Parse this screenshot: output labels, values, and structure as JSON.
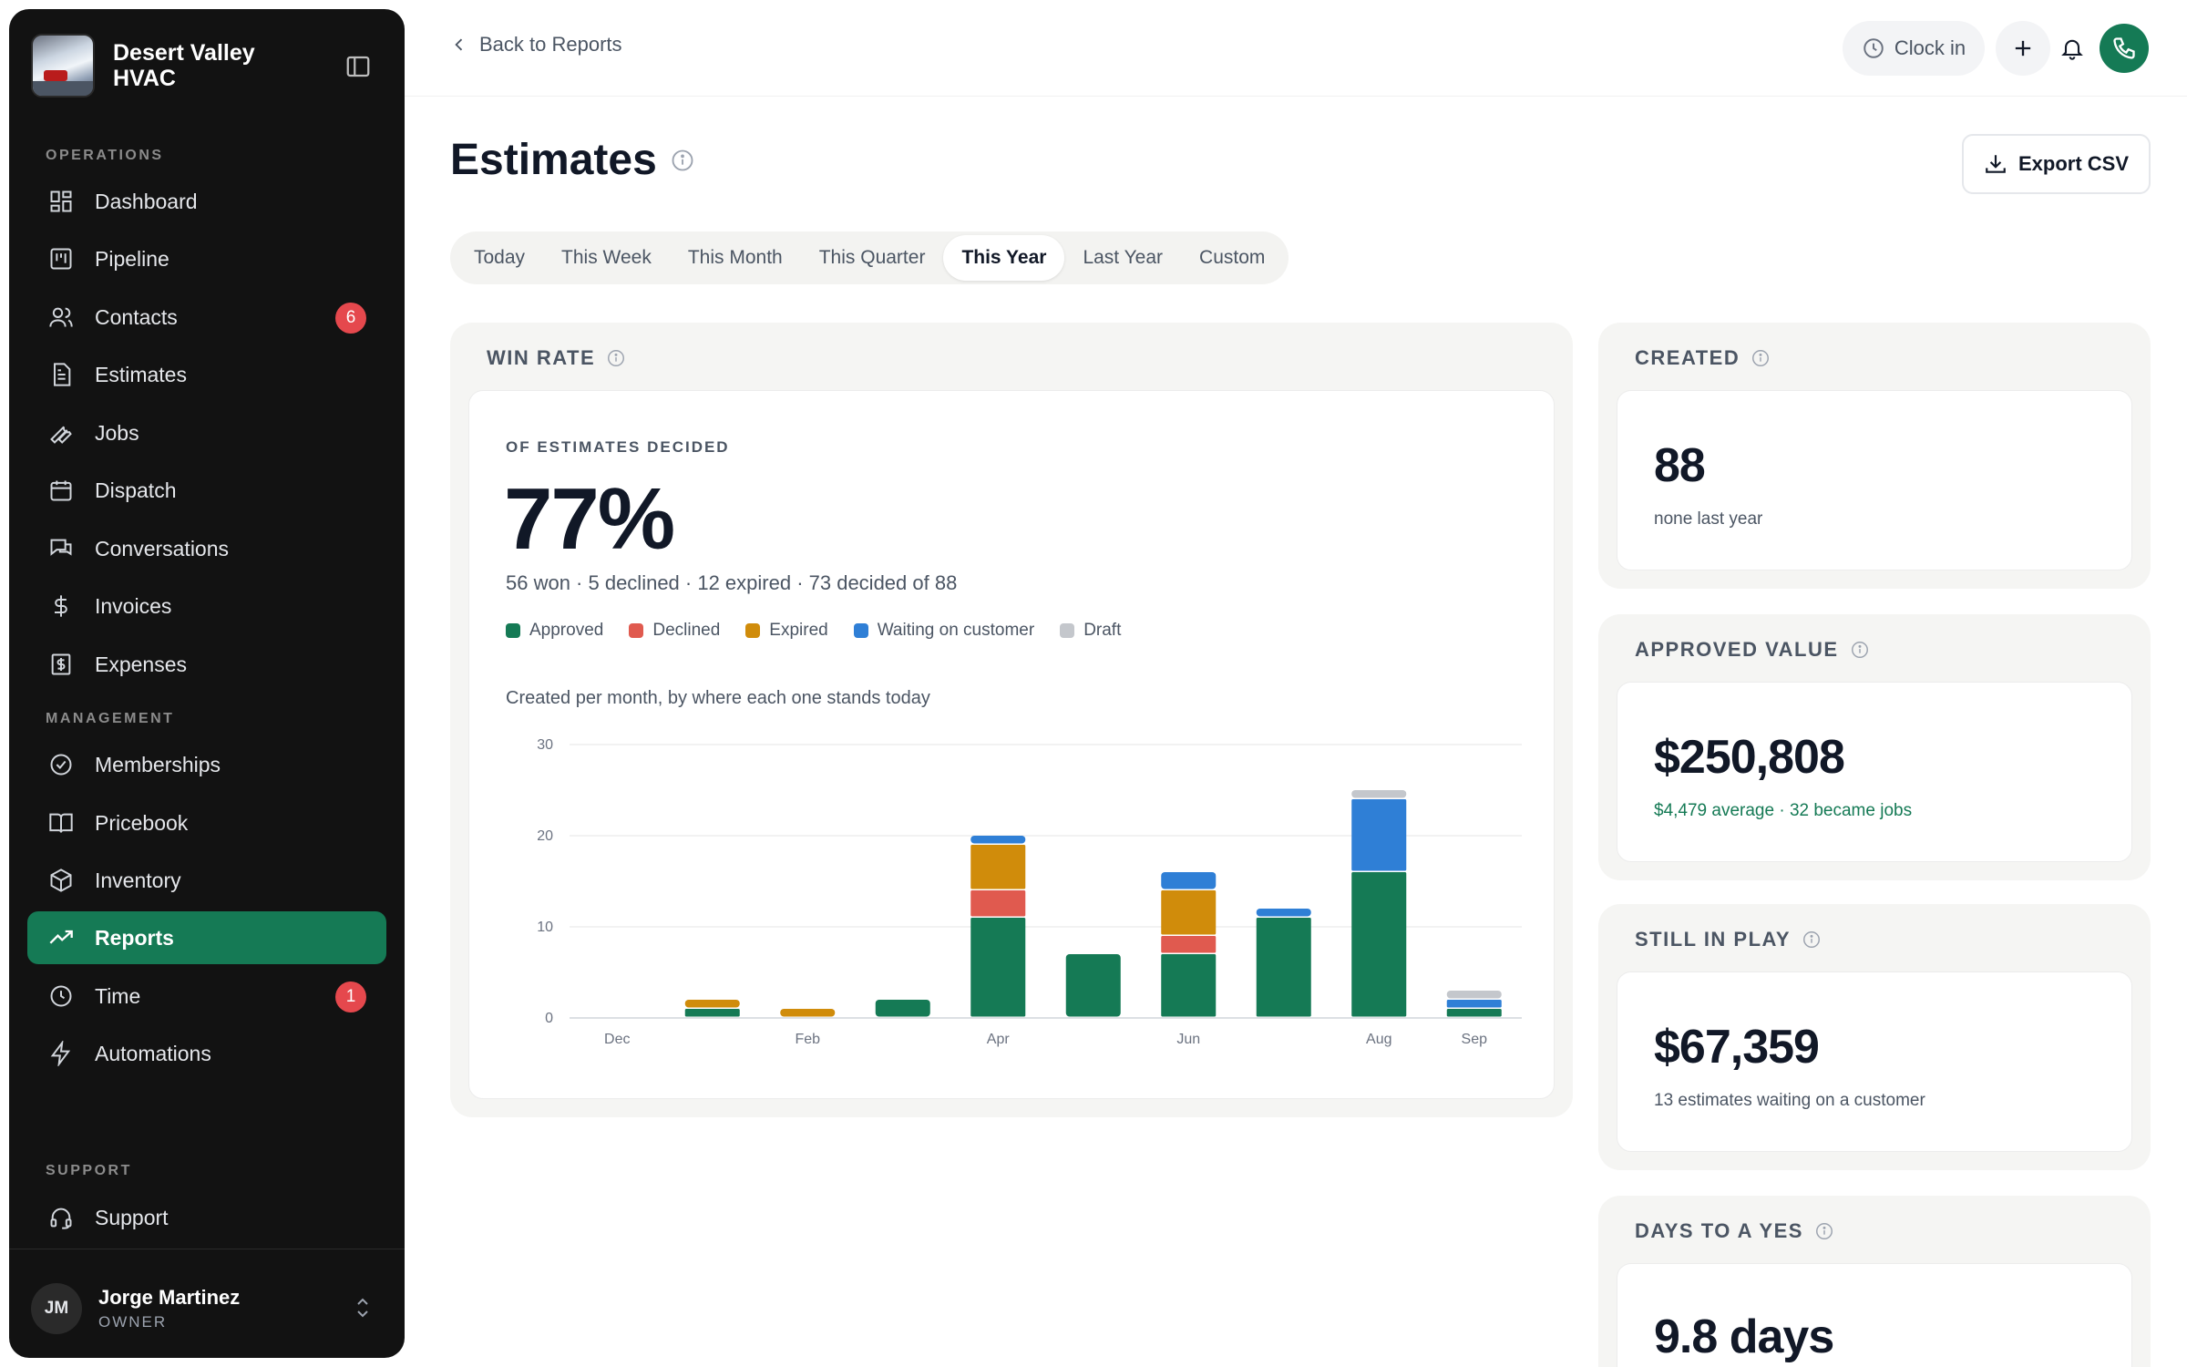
{
  "brand": {
    "name": "Desert Valley HVAC"
  },
  "sidebar": {
    "sections": {
      "operations": "OPERATIONS",
      "management": "MANAGEMENT",
      "support": "SUPPORT"
    },
    "items": [
      {
        "label": "Dashboard",
        "icon": "dashboard-icon"
      },
      {
        "label": "Pipeline",
        "icon": "pipeline-icon"
      },
      {
        "label": "Contacts",
        "icon": "contacts-icon",
        "badge": "6"
      },
      {
        "label": "Estimates",
        "icon": "document-icon"
      },
      {
        "label": "Jobs",
        "icon": "wrench-icon"
      },
      {
        "label": "Dispatch",
        "icon": "calendar-icon"
      },
      {
        "label": "Conversations",
        "icon": "chat-icon"
      },
      {
        "label": "Invoices",
        "icon": "dollar-icon"
      },
      {
        "label": "Expenses",
        "icon": "receipt-icon"
      },
      {
        "label": "Memberships",
        "icon": "badge-check-icon"
      },
      {
        "label": "Pricebook",
        "icon": "book-icon"
      },
      {
        "label": "Inventory",
        "icon": "box-icon"
      },
      {
        "label": "Reports",
        "icon": "trend-icon",
        "active": true
      },
      {
        "label": "Time",
        "icon": "clock-icon",
        "badge": "1"
      },
      {
        "label": "Automations",
        "icon": "bolt-icon"
      },
      {
        "label": "Support",
        "icon": "headset-icon"
      }
    ],
    "user": {
      "initials": "JM",
      "name": "Jorge Martinez",
      "role": "OWNER"
    }
  },
  "topbar": {
    "back_label": "Back to Reports",
    "clock_label": "Clock in"
  },
  "page": {
    "title": "Estimates",
    "export_label": "Export CSV",
    "tabs": [
      "Today",
      "This Week",
      "This Month",
      "This Quarter",
      "This Year",
      "Last Year",
      "Custom"
    ],
    "selected_tab": "This Year"
  },
  "win_rate": {
    "label": "WIN RATE",
    "sub_label": "OF ESTIMATES DECIDED",
    "value": "77%",
    "summary": "56 won · 5 declined · 12 expired · 73 decided of 88",
    "chart_caption": "Created per month, by where each one stands today"
  },
  "colors": {
    "accent": "#157a55",
    "approved": "#157a55",
    "declined": "#e05a4f",
    "expired": "#d08c0b",
    "waiting": "#2f7fd6",
    "draft": "#c4c7cc"
  },
  "chart_data": {
    "type": "bar",
    "stacked": true,
    "categories": [
      "Dec",
      "Jan",
      "Feb",
      "Mar",
      "Apr",
      "May",
      "Jun",
      "Jul",
      "Aug",
      "Sep"
    ],
    "tick_labels": [
      "Dec",
      "",
      "Feb",
      "",
      "Apr",
      "",
      "Jun",
      "",
      "Aug",
      "Sep"
    ],
    "series": [
      {
        "name": "Approved",
        "values": [
          0,
          1,
          0,
          2,
          11,
          7,
          7,
          11,
          16,
          1
        ]
      },
      {
        "name": "Declined",
        "values": [
          0,
          0,
          0,
          0,
          3,
          0,
          2,
          0,
          0,
          0
        ]
      },
      {
        "name": "Expired",
        "values": [
          0,
          1,
          1,
          0,
          5,
          0,
          5,
          0,
          0,
          0
        ]
      },
      {
        "name": "Waiting on customer",
        "values": [
          0,
          0,
          0,
          0,
          1,
          0,
          2,
          1,
          8,
          1
        ]
      },
      {
        "name": "Draft",
        "values": [
          0,
          0,
          0,
          0,
          0,
          0,
          0,
          0,
          1,
          1
        ]
      }
    ],
    "yticks": [
      0,
      10,
      20,
      30
    ],
    "ylim": [
      0,
      30
    ],
    "grid": true,
    "legend": "top-left"
  },
  "kpis": [
    {
      "label": "CREATED",
      "value": "88",
      "sub": "none last year",
      "green": false
    },
    {
      "label": "APPROVED VALUE",
      "value": "$250,808",
      "sub": "$4,479 average · 32 became jobs",
      "green": true
    },
    {
      "label": "STILL IN PLAY",
      "value": "$67,359",
      "sub": "13 estimates waiting on a customer",
      "green": false
    },
    {
      "label": "DAYS TO A YES",
      "value": "9.8 days",
      "sub": "",
      "green": false
    }
  ]
}
